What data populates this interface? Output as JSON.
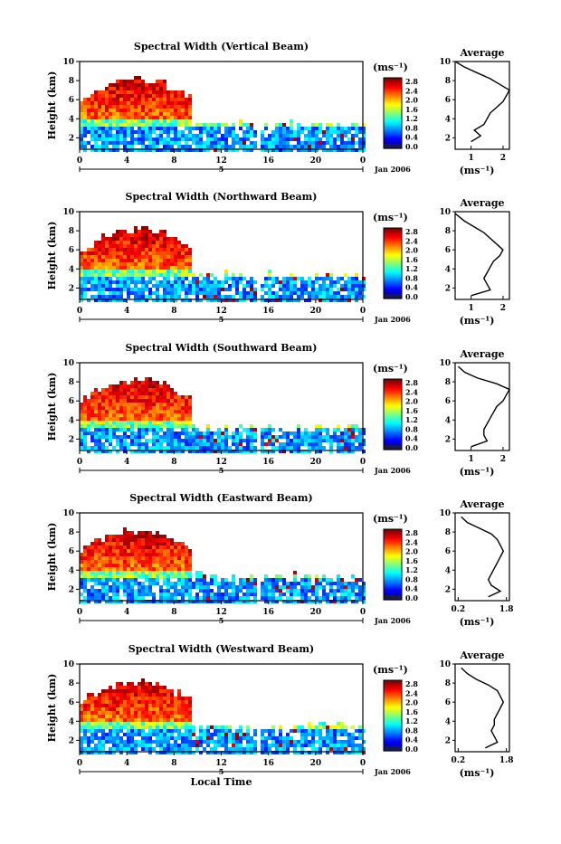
{
  "chart_data": [
    {
      "type": "heatmap",
      "title": "Spectral Width (Vertical Beam)",
      "ylabel": "Height (km)",
      "x_ticks": [
        "0",
        "4",
        "8",
        "12",
        "16",
        "20",
        "0"
      ],
      "y_ticks": [
        "2",
        "4",
        "6",
        "8",
        "10"
      ],
      "date_mark": "5",
      "date_label": "Jan 2006",
      "colorbar_unit": "(ms⁻¹)",
      "colorbar_ticks": [
        "2.8",
        "2.4",
        "2.0",
        "1.6",
        "1.2",
        "0.8",
        "0.4",
        "0.0"
      ],
      "profile": {
        "title": "Average",
        "xlabel": "(ms⁻¹)",
        "x_ticks": [
          "1",
          "2"
        ],
        "xlim": [
          0.5,
          2.2
        ],
        "ylim": [
          0.8,
          10
        ],
        "values": [
          [
            1.0,
            1.6
          ],
          [
            1.3,
            2.2
          ],
          [
            1.1,
            2.8
          ],
          [
            1.4,
            3.4
          ],
          [
            1.5,
            4.0
          ],
          [
            1.6,
            4.6
          ],
          [
            1.8,
            5.2
          ],
          [
            2.0,
            5.8
          ],
          [
            2.1,
            6.4
          ],
          [
            2.2,
            7.0
          ],
          [
            1.9,
            7.6
          ],
          [
            1.6,
            8.2
          ],
          [
            1.2,
            8.8
          ],
          [
            0.8,
            9.4
          ],
          [
            0.5,
            10.0
          ]
        ]
      }
    },
    {
      "type": "heatmap",
      "title": "Spectral Width (Northward Beam)",
      "ylabel": "Height (km)",
      "x_ticks": [
        "0",
        "4",
        "8",
        "12",
        "16",
        "20",
        "0"
      ],
      "y_ticks": [
        "2",
        "4",
        "6",
        "8",
        "10"
      ],
      "date_mark": "5",
      "date_label": "Jan 2006",
      "colorbar_unit": "(ms⁻¹)",
      "colorbar_ticks": [
        "2.8",
        "2.4",
        "2.0",
        "1.6",
        "1.2",
        "0.8",
        "0.4",
        "0.0"
      ],
      "profile": {
        "title": "Average",
        "xlabel": "(ms⁻¹)",
        "x_ticks": [
          "1",
          "2"
        ],
        "xlim": [
          0.5,
          2.2
        ],
        "ylim": [
          0.8,
          10
        ],
        "values": [
          [
            1.0,
            1.2
          ],
          [
            1.6,
            1.8
          ],
          [
            1.5,
            2.4
          ],
          [
            1.4,
            3.0
          ],
          [
            1.5,
            3.6
          ],
          [
            1.6,
            4.2
          ],
          [
            1.7,
            4.8
          ],
          [
            1.9,
            5.4
          ],
          [
            2.0,
            6.0
          ],
          [
            1.8,
            6.6
          ],
          [
            1.6,
            7.2
          ],
          [
            1.4,
            7.8
          ],
          [
            1.1,
            8.4
          ],
          [
            0.8,
            9.0
          ],
          [
            0.5,
            9.8
          ]
        ]
      }
    },
    {
      "type": "heatmap",
      "title": "Spectral Width (Southward Beam)",
      "ylabel": "Height (km)",
      "x_ticks": [
        "0",
        "4",
        "8",
        "12",
        "16",
        "20",
        "0"
      ],
      "y_ticks": [
        "2",
        "4",
        "6",
        "8",
        "10"
      ],
      "date_mark": "5",
      "date_label": "Jan 2006",
      "colorbar_unit": "(ms⁻¹)",
      "colorbar_ticks": [
        "2.8",
        "2.4",
        "2.0",
        "1.6",
        "1.2",
        "0.8",
        "0.4",
        "0.0"
      ],
      "profile": {
        "title": "Average",
        "xlabel": "(ms⁻¹)",
        "x_ticks": [
          "1",
          "2"
        ],
        "xlim": [
          0.5,
          2.2
        ],
        "ylim": [
          0.8,
          10
        ],
        "values": [
          [
            1.0,
            1.2
          ],
          [
            1.5,
            1.8
          ],
          [
            1.4,
            2.4
          ],
          [
            1.4,
            3.0
          ],
          [
            1.5,
            3.6
          ],
          [
            1.6,
            4.2
          ],
          [
            1.7,
            4.8
          ],
          [
            1.8,
            5.4
          ],
          [
            2.0,
            6.0
          ],
          [
            2.1,
            6.6
          ],
          [
            2.2,
            7.2
          ],
          [
            1.8,
            7.8
          ],
          [
            1.2,
            8.4
          ],
          [
            0.8,
            9.0
          ],
          [
            0.6,
            9.6
          ]
        ]
      }
    },
    {
      "type": "heatmap",
      "title": "Spectral Width (Eastward Beam)",
      "ylabel": "Height (km)",
      "x_ticks": [
        "0",
        "4",
        "8",
        "12",
        "16",
        "20",
        "0"
      ],
      "y_ticks": [
        "2",
        "4",
        "6",
        "8",
        "10"
      ],
      "date_mark": "5",
      "date_label": "Jan 2006",
      "colorbar_unit": "(ms⁻¹)",
      "colorbar_ticks": [
        "2.8",
        "2.4",
        "2.0",
        "1.6",
        "1.2",
        "0.8",
        "0.4",
        "0.0"
      ],
      "profile": {
        "title": "Average",
        "xlabel": "(ms⁻¹)",
        "x_ticks": [
          "0.2",
          "1.8"
        ],
        "xlim": [
          0.1,
          1.9
        ],
        "ylim": [
          0.8,
          10
        ],
        "values": [
          [
            1.2,
            1.2
          ],
          [
            1.6,
            1.8
          ],
          [
            1.3,
            2.4
          ],
          [
            1.2,
            3.0
          ],
          [
            1.3,
            3.6
          ],
          [
            1.4,
            4.2
          ],
          [
            1.5,
            4.8
          ],
          [
            1.6,
            5.4
          ],
          [
            1.7,
            6.0
          ],
          [
            1.6,
            6.6
          ],
          [
            1.5,
            7.2
          ],
          [
            1.3,
            7.8
          ],
          [
            0.9,
            8.4
          ],
          [
            0.5,
            9.0
          ],
          [
            0.3,
            9.6
          ]
        ]
      }
    },
    {
      "type": "heatmap",
      "title": "Spectral Width (Westward Beam)",
      "ylabel": "Height (km)",
      "xlabel": "Local Time",
      "x_ticks": [
        "0",
        "4",
        "8",
        "12",
        "16",
        "20",
        "0"
      ],
      "y_ticks": [
        "2",
        "4",
        "6",
        "8",
        "10"
      ],
      "date_mark": "5",
      "date_label": "Jan 2006",
      "colorbar_unit": "(ms⁻¹)",
      "colorbar_ticks": [
        "2.8",
        "2.4",
        "2.0",
        "1.6",
        "1.2",
        "0.8",
        "0.4",
        "0.0"
      ],
      "profile": {
        "title": "Average",
        "xlabel": "(ms⁻¹)",
        "x_ticks": [
          "0.2",
          "1.8"
        ],
        "xlim": [
          0.1,
          1.9
        ],
        "ylim": [
          0.8,
          10
        ],
        "values": [
          [
            1.1,
            1.2
          ],
          [
            1.5,
            1.8
          ],
          [
            1.4,
            2.4
          ],
          [
            1.3,
            3.0
          ],
          [
            1.4,
            3.6
          ],
          [
            1.4,
            4.2
          ],
          [
            1.5,
            4.8
          ],
          [
            1.6,
            5.4
          ],
          [
            1.7,
            6.0
          ],
          [
            1.6,
            6.6
          ],
          [
            1.5,
            7.2
          ],
          [
            1.2,
            7.8
          ],
          [
            0.8,
            8.4
          ],
          [
            0.5,
            9.0
          ],
          [
            0.3,
            9.6
          ]
        ]
      }
    }
  ]
}
